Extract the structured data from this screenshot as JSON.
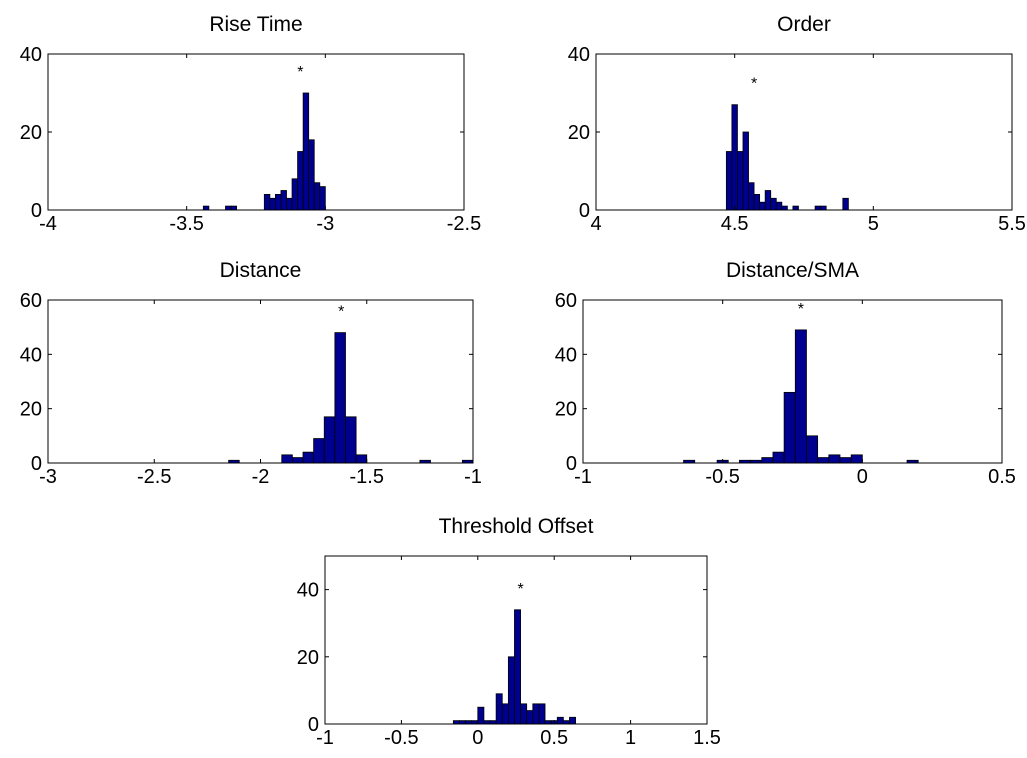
{
  "chart_data": [
    {
      "type": "bar",
      "title": "Rise Time",
      "xlim": [
        -4,
        -2.5
      ],
      "ylim": [
        0,
        40
      ],
      "xticks": [
        -4,
        -3.5,
        -3,
        -2.5
      ],
      "yticks": [
        0,
        20,
        40
      ],
      "xtick_labels": [
        "-4",
        "-3.5",
        "-3",
        "-2.5"
      ],
      "ytick_labels": [
        "0",
        "20",
        "40"
      ],
      "bin_width": 0.02,
      "bins": [
        {
          "x": -3.43,
          "count": 1
        },
        {
          "x": -3.35,
          "count": 1
        },
        {
          "x": -3.33,
          "count": 1
        },
        {
          "x": -3.21,
          "count": 4
        },
        {
          "x": -3.19,
          "count": 3
        },
        {
          "x": -3.17,
          "count": 4
        },
        {
          "x": -3.15,
          "count": 5
        },
        {
          "x": -3.13,
          "count": 3
        },
        {
          "x": -3.11,
          "count": 8
        },
        {
          "x": -3.09,
          "count": 15
        },
        {
          "x": -3.07,
          "count": 30
        },
        {
          "x": -3.05,
          "count": 18
        },
        {
          "x": -3.03,
          "count": 7
        },
        {
          "x": -3.01,
          "count": 6
        }
      ],
      "marker": {
        "x": -3.09,
        "symbol": "*"
      },
      "grid": false
    },
    {
      "type": "bar",
      "title": "Order",
      "xlim": [
        4,
        5.5
      ],
      "ylim": [
        0,
        40
      ],
      "xticks": [
        4,
        4.5,
        5,
        5.5
      ],
      "yticks": [
        0,
        20,
        40
      ],
      "xtick_labels": [
        "4",
        "4.5",
        "5",
        "5.5"
      ],
      "ytick_labels": [
        "0",
        "20",
        "40"
      ],
      "bin_width": 0.02,
      "bins": [
        {
          "x": 4.48,
          "count": 15
        },
        {
          "x": 4.5,
          "count": 27
        },
        {
          "x": 4.52,
          "count": 15
        },
        {
          "x": 4.54,
          "count": 20
        },
        {
          "x": 4.56,
          "count": 7
        },
        {
          "x": 4.58,
          "count": 4
        },
        {
          "x": 4.6,
          "count": 2
        },
        {
          "x": 4.62,
          "count": 5
        },
        {
          "x": 4.64,
          "count": 3
        },
        {
          "x": 4.66,
          "count": 2
        },
        {
          "x": 4.68,
          "count": 1
        },
        {
          "x": 4.72,
          "count": 1
        },
        {
          "x": 4.8,
          "count": 1
        },
        {
          "x": 4.82,
          "count": 1
        },
        {
          "x": 4.9,
          "count": 3
        }
      ],
      "marker": {
        "x": 4.57,
        "symbol": "*"
      },
      "grid": false
    },
    {
      "type": "bar",
      "title": "Distance",
      "xlim": [
        -3,
        -1
      ],
      "ylim": [
        0,
        60
      ],
      "xticks": [
        -3,
        -2.5,
        -2,
        -1.5,
        -1
      ],
      "yticks": [
        0,
        20,
        40,
        60
      ],
      "xtick_labels": [
        "-3",
        "-2.5",
        "-2",
        "-1.5",
        "-1"
      ],
      "ytick_labels": [
        "0",
        "20",
        "40",
        "60"
      ],
      "bin_width": 0.05,
      "bins": [
        {
          "x": -2.125,
          "count": 1
        },
        {
          "x": -1.875,
          "count": 3
        },
        {
          "x": -1.825,
          "count": 2
        },
        {
          "x": -1.775,
          "count": 4
        },
        {
          "x": -1.725,
          "count": 9
        },
        {
          "x": -1.675,
          "count": 17
        },
        {
          "x": -1.625,
          "count": 48
        },
        {
          "x": -1.575,
          "count": 17
        },
        {
          "x": -1.525,
          "count": 3
        },
        {
          "x": -1.225,
          "count": 1
        },
        {
          "x": -1.025,
          "count": 1
        }
      ],
      "marker": {
        "x": -1.62,
        "symbol": "*"
      },
      "grid": false
    },
    {
      "type": "bar",
      "title": "Distance/SMA",
      "xlim": [
        -1,
        0.5
      ],
      "ylim": [
        0,
        60
      ],
      "xticks": [
        -1,
        -0.5,
        0,
        0.5
      ],
      "yticks": [
        0,
        20,
        40,
        60
      ],
      "xtick_labels": [
        "-1",
        "-0.5",
        "0",
        "0.5"
      ],
      "ytick_labels": [
        "0",
        "20",
        "40",
        "60"
      ],
      "bin_width": 0.04,
      "bins": [
        {
          "x": -0.62,
          "count": 1
        },
        {
          "x": -0.5,
          "count": 1
        },
        {
          "x": -0.42,
          "count": 1
        },
        {
          "x": -0.38,
          "count": 1
        },
        {
          "x": -0.34,
          "count": 2
        },
        {
          "x": -0.3,
          "count": 4
        },
        {
          "x": -0.26,
          "count": 26
        },
        {
          "x": -0.22,
          "count": 49
        },
        {
          "x": -0.18,
          "count": 10
        },
        {
          "x": -0.14,
          "count": 2
        },
        {
          "x": -0.1,
          "count": 3
        },
        {
          "x": -0.06,
          "count": 2
        },
        {
          "x": -0.02,
          "count": 3
        },
        {
          "x": 0.18,
          "count": 1
        }
      ],
      "marker": {
        "x": -0.22,
        "symbol": "*"
      },
      "grid": false
    },
    {
      "type": "bar",
      "title": "Threshold Offset",
      "xlim": [
        -1,
        1.5
      ],
      "ylim": [
        0,
        50
      ],
      "xticks": [
        -1,
        -0.5,
        0,
        0.5,
        1,
        1.5
      ],
      "yticks": [
        0,
        20,
        40
      ],
      "xtick_labels": [
        "-1",
        "-0.5",
        "0",
        "0.5",
        "1",
        "1.5"
      ],
      "ytick_labels": [
        "0",
        "20",
        "40"
      ],
      "bin_width": 0.04,
      "bins": [
        {
          "x": -0.14,
          "count": 1
        },
        {
          "x": -0.1,
          "count": 1
        },
        {
          "x": -0.06,
          "count": 1
        },
        {
          "x": -0.02,
          "count": 1
        },
        {
          "x": 0.02,
          "count": 5
        },
        {
          "x": 0.06,
          "count": 1
        },
        {
          "x": 0.1,
          "count": 1
        },
        {
          "x": 0.14,
          "count": 9
        },
        {
          "x": 0.18,
          "count": 6
        },
        {
          "x": 0.22,
          "count": 20
        },
        {
          "x": 0.26,
          "count": 34
        },
        {
          "x": 0.3,
          "count": 6
        },
        {
          "x": 0.34,
          "count": 4
        },
        {
          "x": 0.38,
          "count": 6
        },
        {
          "x": 0.42,
          "count": 6
        },
        {
          "x": 0.46,
          "count": 1
        },
        {
          "x": 0.5,
          "count": 1
        },
        {
          "x": 0.54,
          "count": 2
        },
        {
          "x": 0.58,
          "count": 1
        },
        {
          "x": 0.62,
          "count": 2
        }
      ],
      "marker": {
        "x": 0.28,
        "symbol": "*"
      },
      "grid": false
    }
  ],
  "colors": {
    "bar_fill": "#00008f",
    "bar_edge": "#000000",
    "axes": "#000000",
    "background": "#ffffff"
  }
}
